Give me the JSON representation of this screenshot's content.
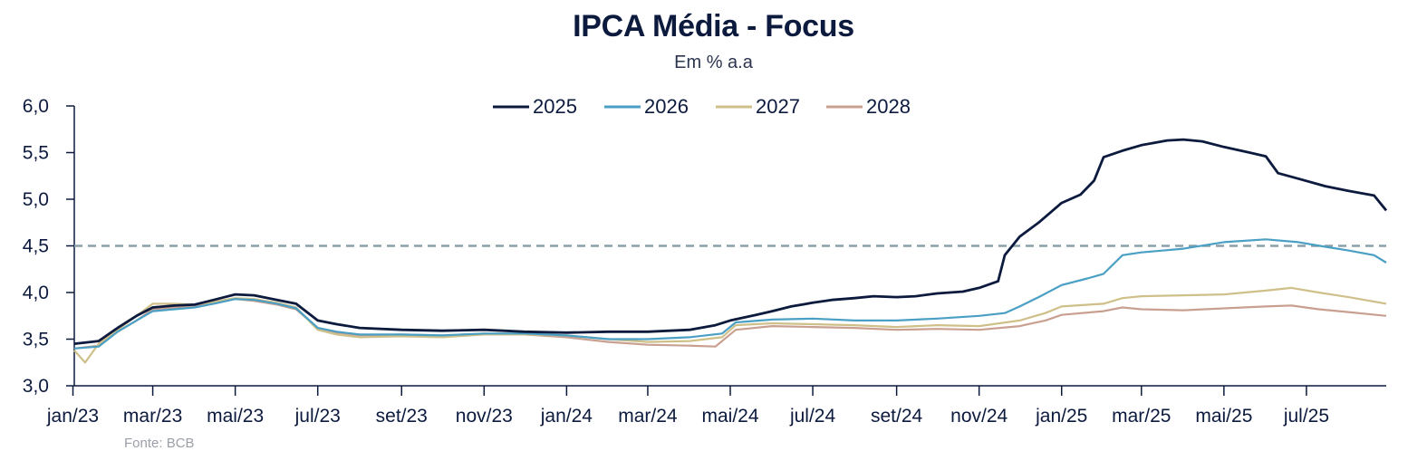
{
  "chart_data": {
    "type": "line",
    "title": "IPCA Média - Focus",
    "subtitle": "Em % a.a",
    "source": "Fonte: BCB",
    "xlabel": "",
    "ylabel": "",
    "ylim": [
      3.0,
      6.0
    ],
    "y_ticks": [
      "3,0",
      "3,5",
      "4,0",
      "4,5",
      "5,0",
      "5,5",
      "6,0"
    ],
    "x_ticks": [
      "jan/23",
      "mar/23",
      "mai/23",
      "jul/23",
      "set/23",
      "nov/23",
      "jan/24",
      "mar/24",
      "mai/24",
      "jul/24",
      "set/24",
      "nov/24",
      "jan/25",
      "mar/25",
      "mai/25",
      "jul/25"
    ],
    "x_start": "2023-01-02",
    "x_end": "2025-08-29",
    "grid": false,
    "legend_position": "top-center",
    "reference_line": {
      "value": 4.5,
      "color": "#8aa0a8",
      "style": "dashed"
    },
    "series": [
      {
        "name": "2025",
        "color": "#0c1a3e",
        "points": [
          [
            "2023-01-02",
            3.45
          ],
          [
            "2023-01-20",
            3.48
          ],
          [
            "2023-02-03",
            3.62
          ],
          [
            "2023-02-17",
            3.75
          ],
          [
            "2023-03-01",
            3.84
          ],
          [
            "2023-03-17",
            3.86
          ],
          [
            "2023-04-01",
            3.87
          ],
          [
            "2023-04-15",
            3.92
          ],
          [
            "2023-05-01",
            3.98
          ],
          [
            "2023-05-15",
            3.97
          ],
          [
            "2023-06-01",
            3.92
          ],
          [
            "2023-06-15",
            3.88
          ],
          [
            "2023-07-01",
            3.7
          ],
          [
            "2023-07-15",
            3.66
          ],
          [
            "2023-08-01",
            3.62
          ],
          [
            "2023-09-01",
            3.6
          ],
          [
            "2023-10-01",
            3.59
          ],
          [
            "2023-11-01",
            3.6
          ],
          [
            "2023-12-01",
            3.58
          ],
          [
            "2024-01-01",
            3.57
          ],
          [
            "2024-02-01",
            3.58
          ],
          [
            "2024-03-01",
            3.58
          ],
          [
            "2024-04-01",
            3.6
          ],
          [
            "2024-04-20",
            3.65
          ],
          [
            "2024-05-01",
            3.7
          ],
          [
            "2024-05-20",
            3.76
          ],
          [
            "2024-06-01",
            3.8
          ],
          [
            "2024-06-15",
            3.85
          ],
          [
            "2024-07-01",
            3.89
          ],
          [
            "2024-07-15",
            3.92
          ],
          [
            "2024-08-01",
            3.94
          ],
          [
            "2024-08-15",
            3.96
          ],
          [
            "2024-09-01",
            3.95
          ],
          [
            "2024-09-15",
            3.96
          ],
          [
            "2024-10-01",
            3.99
          ],
          [
            "2024-10-20",
            4.01
          ],
          [
            "2024-11-01",
            4.05
          ],
          [
            "2024-11-15",
            4.12
          ],
          [
            "2024-11-20",
            4.4
          ],
          [
            "2024-12-01",
            4.6
          ],
          [
            "2024-12-15",
            4.75
          ],
          [
            "2025-01-01",
            4.96
          ],
          [
            "2025-01-15",
            5.05
          ],
          [
            "2025-01-25",
            5.2
          ],
          [
            "2025-02-01",
            5.45
          ],
          [
            "2025-02-15",
            5.52
          ],
          [
            "2025-03-01",
            5.58
          ],
          [
            "2025-03-20",
            5.63
          ],
          [
            "2025-04-01",
            5.64
          ],
          [
            "2025-04-15",
            5.62
          ],
          [
            "2025-05-01",
            5.56
          ],
          [
            "2025-05-20",
            5.5
          ],
          [
            "2025-06-01",
            5.46
          ],
          [
            "2025-06-10",
            5.28
          ],
          [
            "2025-06-25",
            5.22
          ],
          [
            "2025-07-15",
            5.14
          ],
          [
            "2025-08-01",
            5.09
          ],
          [
            "2025-08-20",
            5.04
          ],
          [
            "2025-08-29",
            4.88
          ]
        ]
      },
      {
        "name": "2026",
        "color": "#4a9fc4",
        "points": [
          [
            "2023-01-02",
            3.4
          ],
          [
            "2023-01-20",
            3.42
          ],
          [
            "2023-02-03",
            3.58
          ],
          [
            "2023-02-17",
            3.7
          ],
          [
            "2023-03-01",
            3.8
          ],
          [
            "2023-03-17",
            3.82
          ],
          [
            "2023-04-01",
            3.84
          ],
          [
            "2023-04-15",
            3.88
          ],
          [
            "2023-05-01",
            3.93
          ],
          [
            "2023-05-15",
            3.92
          ],
          [
            "2023-06-01",
            3.88
          ],
          [
            "2023-06-15",
            3.83
          ],
          [
            "2023-07-01",
            3.62
          ],
          [
            "2023-07-15",
            3.58
          ],
          [
            "2023-08-01",
            3.55
          ],
          [
            "2023-09-01",
            3.55
          ],
          [
            "2023-10-01",
            3.54
          ],
          [
            "2023-11-01",
            3.56
          ],
          [
            "2023-12-01",
            3.56
          ],
          [
            "2024-01-01",
            3.54
          ],
          [
            "2024-02-01",
            3.5
          ],
          [
            "2024-03-01",
            3.5
          ],
          [
            "2024-04-01",
            3.52
          ],
          [
            "2024-04-25",
            3.56
          ],
          [
            "2024-05-05",
            3.68
          ],
          [
            "2024-06-01",
            3.71
          ],
          [
            "2024-07-01",
            3.72
          ],
          [
            "2024-08-01",
            3.7
          ],
          [
            "2024-09-01",
            3.7
          ],
          [
            "2024-10-01",
            3.72
          ],
          [
            "2024-11-01",
            3.75
          ],
          [
            "2024-11-20",
            3.78
          ],
          [
            "2024-12-01",
            3.85
          ],
          [
            "2024-12-15",
            3.95
          ],
          [
            "2025-01-01",
            4.08
          ],
          [
            "2025-01-20",
            4.15
          ],
          [
            "2025-02-01",
            4.2
          ],
          [
            "2025-02-15",
            4.4
          ],
          [
            "2025-03-01",
            4.43
          ],
          [
            "2025-04-01",
            4.47
          ],
          [
            "2025-05-01",
            4.54
          ],
          [
            "2025-06-01",
            4.57
          ],
          [
            "2025-06-25",
            4.54
          ],
          [
            "2025-07-15",
            4.49
          ],
          [
            "2025-08-01",
            4.45
          ],
          [
            "2025-08-20",
            4.4
          ],
          [
            "2025-08-29",
            4.32
          ]
        ]
      },
      {
        "name": "2027",
        "color": "#cfc08a",
        "points": [
          [
            "2023-01-02",
            3.38
          ],
          [
            "2023-01-10",
            3.25
          ],
          [
            "2023-01-20",
            3.45
          ],
          [
            "2023-02-03",
            3.6
          ],
          [
            "2023-02-17",
            3.75
          ],
          [
            "2023-03-01",
            3.88
          ],
          [
            "2023-03-17",
            3.88
          ],
          [
            "2023-04-01",
            3.87
          ],
          [
            "2023-04-15",
            3.9
          ],
          [
            "2023-05-01",
            3.94
          ],
          [
            "2023-05-15",
            3.93
          ],
          [
            "2023-06-01",
            3.89
          ],
          [
            "2023-06-15",
            3.84
          ],
          [
            "2023-07-01",
            3.6
          ],
          [
            "2023-07-15",
            3.55
          ],
          [
            "2023-08-01",
            3.52
          ],
          [
            "2023-09-01",
            3.53
          ],
          [
            "2023-10-01",
            3.52
          ],
          [
            "2023-11-01",
            3.55
          ],
          [
            "2023-12-01",
            3.55
          ],
          [
            "2024-01-01",
            3.54
          ],
          [
            "2024-02-01",
            3.5
          ],
          [
            "2024-03-01",
            3.47
          ],
          [
            "2024-04-01",
            3.48
          ],
          [
            "2024-04-25",
            3.52
          ],
          [
            "2024-05-05",
            3.65
          ],
          [
            "2024-06-01",
            3.67
          ],
          [
            "2024-07-01",
            3.66
          ],
          [
            "2024-08-01",
            3.65
          ],
          [
            "2024-09-01",
            3.63
          ],
          [
            "2024-10-01",
            3.65
          ],
          [
            "2024-11-01",
            3.64
          ],
          [
            "2024-12-01",
            3.7
          ],
          [
            "2024-12-20",
            3.78
          ],
          [
            "2025-01-01",
            3.85
          ],
          [
            "2025-02-01",
            3.88
          ],
          [
            "2025-02-15",
            3.94
          ],
          [
            "2025-03-01",
            3.96
          ],
          [
            "2025-04-01",
            3.97
          ],
          [
            "2025-05-01",
            3.98
          ],
          [
            "2025-06-01",
            4.02
          ],
          [
            "2025-06-20",
            4.05
          ],
          [
            "2025-07-10",
            4.0
          ],
          [
            "2025-08-01",
            3.95
          ],
          [
            "2025-08-29",
            3.88
          ]
        ]
      },
      {
        "name": "2028",
        "color": "#c9a090",
        "points": [
          [
            "2023-01-02",
            3.4
          ],
          [
            "2023-01-20",
            3.43
          ],
          [
            "2023-02-03",
            3.58
          ],
          [
            "2023-02-17",
            3.7
          ],
          [
            "2023-03-01",
            3.82
          ],
          [
            "2023-03-17",
            3.84
          ],
          [
            "2023-04-01",
            3.86
          ],
          [
            "2023-04-15",
            3.89
          ],
          [
            "2023-05-01",
            3.93
          ],
          [
            "2023-05-15",
            3.91
          ],
          [
            "2023-06-01",
            3.87
          ],
          [
            "2023-06-15",
            3.82
          ],
          [
            "2023-07-01",
            3.62
          ],
          [
            "2023-07-15",
            3.57
          ],
          [
            "2023-08-01",
            3.54
          ],
          [
            "2023-09-01",
            3.55
          ],
          [
            "2023-10-01",
            3.54
          ],
          [
            "2023-11-01",
            3.56
          ],
          [
            "2023-12-01",
            3.55
          ],
          [
            "2024-01-01",
            3.52
          ],
          [
            "2024-02-01",
            3.47
          ],
          [
            "2024-03-01",
            3.44
          ],
          [
            "2024-04-01",
            3.43
          ],
          [
            "2024-04-20",
            3.42
          ],
          [
            "2024-05-05",
            3.6
          ],
          [
            "2024-06-01",
            3.64
          ],
          [
            "2024-07-01",
            3.63
          ],
          [
            "2024-08-01",
            3.62
          ],
          [
            "2024-09-01",
            3.6
          ],
          [
            "2024-10-01",
            3.61
          ],
          [
            "2024-11-01",
            3.6
          ],
          [
            "2024-12-01",
            3.64
          ],
          [
            "2024-12-20",
            3.7
          ],
          [
            "2025-01-01",
            3.76
          ],
          [
            "2025-02-01",
            3.8
          ],
          [
            "2025-02-15",
            3.84
          ],
          [
            "2025-03-01",
            3.82
          ],
          [
            "2025-04-01",
            3.81
          ],
          [
            "2025-05-01",
            3.83
          ],
          [
            "2025-06-01",
            3.85
          ],
          [
            "2025-06-20",
            3.86
          ],
          [
            "2025-07-10",
            3.82
          ],
          [
            "2025-08-01",
            3.79
          ],
          [
            "2025-08-29",
            3.75
          ]
        ]
      }
    ]
  }
}
